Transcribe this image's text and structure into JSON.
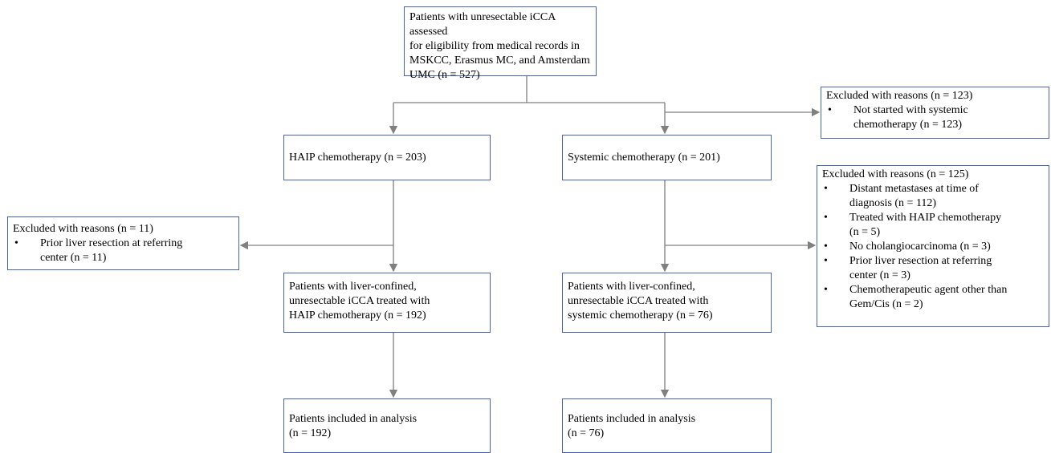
{
  "nodes": [
    {
      "lines": [
        "Patients with unresectable iCCA assessed",
        "for eligibility from medical records in",
        "MSKCC, Erasmus MC, and Amsterdam",
        "UMC (n = 527)"
      ]
    },
    {
      "lines": [
        "HAIP chemotherapy (n = 203)"
      ]
    },
    {
      "lines": [
        "Systemic chemotherapy (n = 201)"
      ]
    },
    {
      "lines": [
        "Excluded with reasons (n = 123)"
      ],
      "items": [
        [
          "Not started with systemic",
          "chemotherapy (n = 123)"
        ]
      ]
    },
    {
      "lines": [
        "Excluded with reasons (n = 11)"
      ],
      "items": [
        [
          "Prior liver resection at referring",
          "center (n = 11)"
        ]
      ]
    },
    {
      "lines": [
        "Excluded with reasons (n = 125)"
      ],
      "items": [
        [
          "Distant metastases at time of",
          "diagnosis (n = 112)"
        ],
        [
          "Treated with HAIP chemotherapy",
          "(n = 5)"
        ],
        [
          "No cholangiocarcinoma (n = 3)"
        ],
        [
          "Prior liver resection at referring",
          "center (n = 3)"
        ],
        [
          "Chemotherapeutic agent other than",
          "Gem/Cis (n = 2)"
        ]
      ]
    },
    {
      "lines": [
        "Patients with liver-confined,",
        "unresectable iCCA treated with",
        "HAIP chemotherapy (n = 192)"
      ]
    },
    {
      "lines": [
        "Patients with liver-confined,",
        "unresectable iCCA treated with",
        "systemic chemotherapy (n = 76)"
      ]
    },
    {
      "lines": [
        "Patients included in analysis",
        "(n = 192)"
      ]
    },
    {
      "lines": [
        "Patients included in analysis",
        "(n = 76)"
      ]
    }
  ]
}
